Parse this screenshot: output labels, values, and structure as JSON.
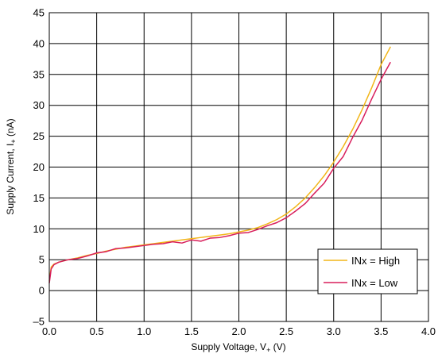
{
  "chart_data": {
    "type": "line",
    "title": "",
    "xlabel": "Supply Voltage, V",
    "xlabel_sub": "+",
    "xlabel_unit": " (V)",
    "ylabel": "Supply Current, I",
    "ylabel_sub": "+",
    "ylabel_unit": " (nA)",
    "xlim": [
      0,
      4
    ],
    "ylim": [
      -5,
      45
    ],
    "x_ticks": [
      0,
      0.5,
      1,
      1.5,
      2,
      2.5,
      3,
      3.5,
      4
    ],
    "x_tick_labels": [
      "0.0",
      "0.5",
      "1.0",
      "1.5",
      "2.0",
      "2.5",
      "3.0",
      "3.5",
      "4.0"
    ],
    "y_ticks": [
      -5,
      0,
      5,
      10,
      15,
      20,
      25,
      30,
      35,
      40,
      45
    ],
    "y_tick_labels": [
      "–5",
      "0",
      "5",
      "10",
      "15",
      "20",
      "25",
      "30",
      "35",
      "40",
      "45"
    ],
    "grid": true,
    "legend_position": "bottom-right",
    "series": [
      {
        "name": "INx = High",
        "color": "#F2B619",
        "x": [
          0.0,
          0.02,
          0.05,
          0.1,
          0.2,
          0.3,
          0.4,
          0.5,
          0.6,
          0.7,
          0.8,
          0.9,
          1.0,
          1.1,
          1.2,
          1.3,
          1.4,
          1.5,
          1.6,
          1.7,
          1.8,
          1.9,
          2.0,
          2.1,
          2.2,
          2.3,
          2.4,
          2.5,
          2.6,
          2.7,
          2.8,
          2.9,
          3.0,
          3.1,
          3.2,
          3.3,
          3.4,
          3.5,
          3.6
        ],
        "y": [
          1.5,
          3.8,
          4.3,
          4.6,
          5.0,
          5.3,
          5.7,
          6.0,
          6.4,
          6.7,
          7.0,
          7.2,
          7.4,
          7.6,
          7.8,
          8.0,
          8.2,
          8.4,
          8.6,
          8.8,
          9.0,
          9.2,
          9.5,
          9.8,
          10.2,
          10.8,
          11.5,
          12.4,
          13.6,
          15.0,
          16.7,
          18.6,
          20.8,
          23.3,
          26.1,
          29.3,
          32.8,
          36.6,
          39.5
        ]
      },
      {
        "name": "INx = Low",
        "color": "#D81E5B",
        "x": [
          0.0,
          0.02,
          0.05,
          0.1,
          0.2,
          0.3,
          0.4,
          0.5,
          0.6,
          0.7,
          0.8,
          0.9,
          1.0,
          1.1,
          1.2,
          1.3,
          1.4,
          1.5,
          1.6,
          1.7,
          1.8,
          1.9,
          2.0,
          2.1,
          2.2,
          2.3,
          2.4,
          2.5,
          2.6,
          2.7,
          2.8,
          2.9,
          3.0,
          3.1,
          3.2,
          3.3,
          3.4,
          3.5,
          3.6
        ],
        "y": [
          1.2,
          3.5,
          4.2,
          4.6,
          5.0,
          5.2,
          5.6,
          6.1,
          6.3,
          6.8,
          6.9,
          7.1,
          7.3,
          7.5,
          7.6,
          7.9,
          7.7,
          8.2,
          8.0,
          8.5,
          8.6,
          8.9,
          9.3,
          9.4,
          9.9,
          10.5,
          11.0,
          11.8,
          12.9,
          14.1,
          15.8,
          17.4,
          19.8,
          21.7,
          24.8,
          27.6,
          31.0,
          34.2,
          37.0
        ]
      }
    ]
  }
}
